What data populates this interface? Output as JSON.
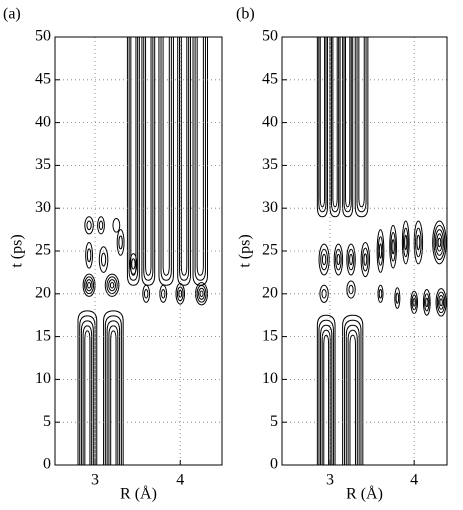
{
  "chart_data": [
    {
      "type": "contour",
      "title": "(a)",
      "xlabel": "R (Å)",
      "ylabel": "t (ps)",
      "xlim": [
        2.53,
        4.49
      ],
      "ylim": [
        0,
        50
      ],
      "xticks": [
        3,
        4
      ],
      "yticks": [
        0,
        5,
        10,
        15,
        20,
        25,
        30,
        35,
        40,
        45,
        50
      ],
      "grid": true
    },
    {
      "type": "contour",
      "title": "(b)",
      "xlabel": "R (Å)",
      "ylabel": "t (ps)",
      "xlim": [
        2.43,
        4.39
      ],
      "ylim": [
        0,
        50
      ],
      "xticks": [
        3,
        4
      ],
      "yticks": [
        0,
        5,
        10,
        15,
        20,
        25,
        30,
        35,
        40,
        45,
        50
      ],
      "grid": true
    }
  ]
}
